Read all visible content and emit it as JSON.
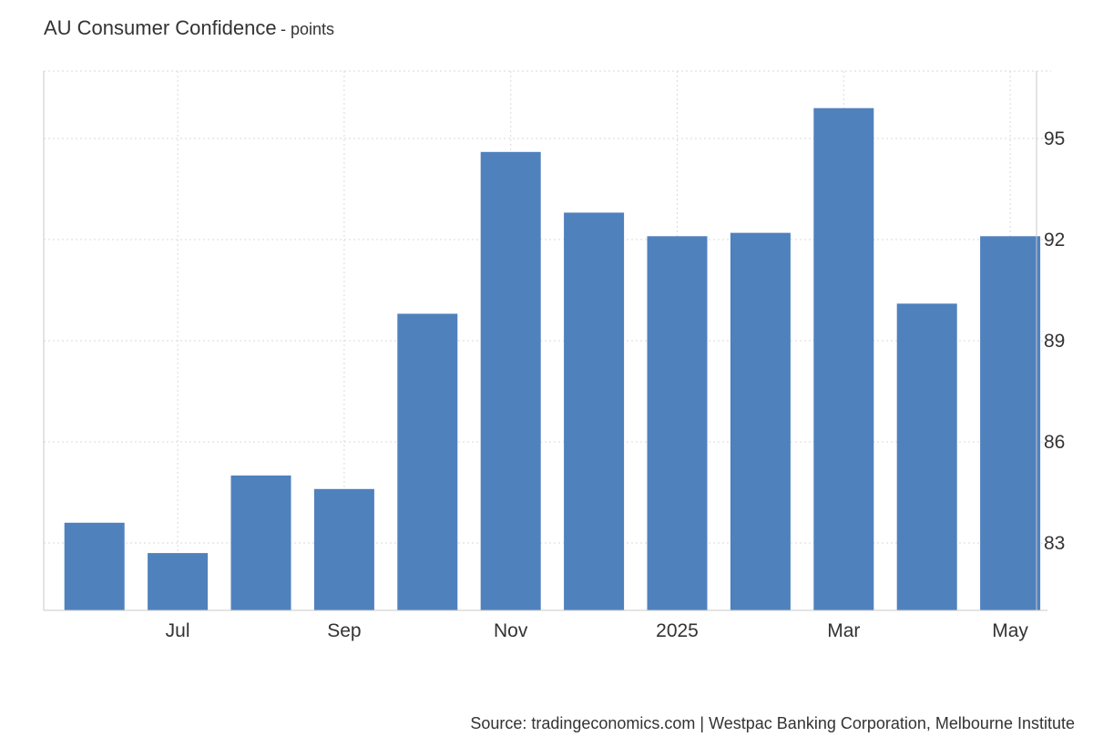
{
  "header": {
    "title": "AU Consumer Confidence",
    "unit": "- points"
  },
  "footer": {
    "source": "Source: tradingeconomics.com | Westpac Banking Corporation, Melbourne Institute"
  },
  "colors": {
    "bar": "#4f81bd",
    "grid": "#d9d9d9",
    "axis": "#c8c8c8",
    "text": "#333333"
  },
  "chart_data": {
    "type": "bar",
    "categories": [
      "2024-06",
      "2024-07",
      "2024-08",
      "2024-09",
      "2024-10",
      "2024-11",
      "2024-12",
      "2025-01",
      "2025-02",
      "2025-03",
      "2025-04",
      "2025-05"
    ],
    "values": [
      83.6,
      82.7,
      85.0,
      84.6,
      89.8,
      94.6,
      92.8,
      92.1,
      92.2,
      95.9,
      90.1,
      92.1
    ],
    "x_tick_labels": [
      {
        "category": "2024-07",
        "label": "Jul"
      },
      {
        "category": "2024-09",
        "label": "Sep"
      },
      {
        "category": "2024-11",
        "label": "Nov"
      },
      {
        "category": "2025-01",
        "label": "2025"
      },
      {
        "category": "2025-03",
        "label": "Mar"
      },
      {
        "category": "2025-05",
        "label": "May"
      }
    ],
    "y_ticks": [
      83,
      86,
      89,
      92,
      95
    ],
    "ylim": [
      81.0,
      97.0
    ],
    "y_axis_side": "right",
    "grid": true,
    "grid_style": "dotted",
    "legend": "none"
  }
}
